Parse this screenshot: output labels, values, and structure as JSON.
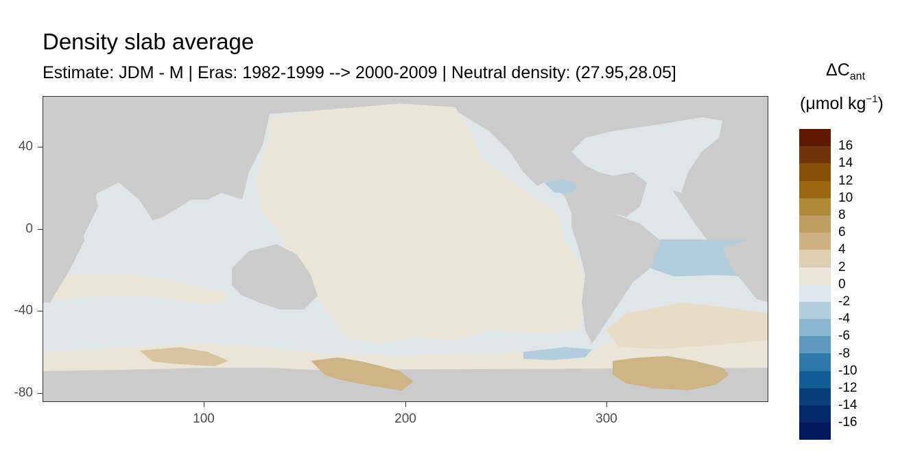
{
  "title": "Density slab average",
  "subtitle": "Estimate: JDM - M | Eras: 1982-1999 --> 2000-2009 | Neutral density: (27.95,28.05]",
  "map": {
    "x_ticks": [
      "100",
      "200",
      "300"
    ],
    "y_ticks": [
      "40",
      "0",
      "-40",
      "-80"
    ],
    "land_color": "#cbcbcb",
    "missing_color": "#ffffff"
  },
  "legend": {
    "title_main": "ΔC",
    "title_sub": "ant",
    "unit_prefix": "(μmol kg",
    "unit_sup": "−1",
    "unit_suffix": ")",
    "labels": [
      "16",
      "14",
      "12",
      "10",
      "8",
      "6",
      "4",
      "2",
      "0",
      "-2",
      "-4",
      "-6",
      "-8",
      "-10",
      "-12",
      "-14",
      "-16"
    ],
    "colors": [
      "#5e1a00",
      "#71330a",
      "#845007",
      "#9a6713",
      "#b0883a",
      "#bf9e63",
      "#cdb182",
      "#dfcfb1",
      "#ebe5d8",
      "#dce6ec",
      "#b2cede",
      "#8ab6cf",
      "#5d98bd",
      "#2f78a8",
      "#125d95",
      "#063f7a",
      "#032768",
      "#001759"
    ]
  }
}
